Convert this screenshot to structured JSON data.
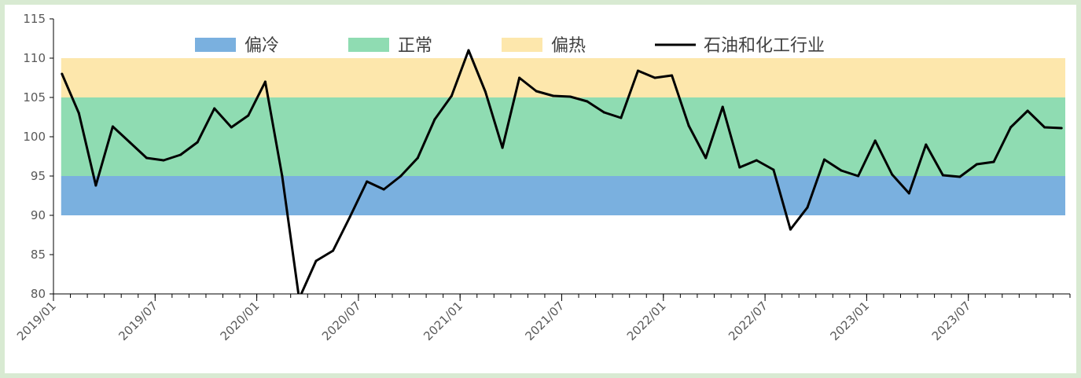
{
  "chart_data": {
    "type": "line",
    "title": "",
    "xlabel": "",
    "ylabel": "",
    "ylim": [
      80,
      115
    ],
    "yticks": [
      80,
      85,
      90,
      95,
      100,
      105,
      110,
      115
    ],
    "grid": false,
    "legend_position": "top",
    "bands": [
      {
        "name": "偏冷",
        "from": 90,
        "to": 95,
        "color": "#7ab0df"
      },
      {
        "name": "正常",
        "from": 95,
        "to": 105,
        "color": "#8fdcb2"
      },
      {
        "name": "偏热",
        "from": 105,
        "to": 110,
        "color": "#fde7ac"
      }
    ],
    "xtick_labels": [
      "2019/01",
      "2019/07",
      "2020/01",
      "2020/07",
      "2021/01",
      "2021/07",
      "2022/01",
      "2022/07",
      "2023/01",
      "2023/07"
    ],
    "x": [
      "2019/01",
      "2019/02",
      "2019/03",
      "2019/04",
      "2019/05",
      "2019/06",
      "2019/07",
      "2019/08",
      "2019/09",
      "2019/10",
      "2019/11",
      "2019/12",
      "2020/01",
      "2020/02",
      "2020/03",
      "2020/04",
      "2020/05",
      "2020/06",
      "2020/07",
      "2020/08",
      "2020/09",
      "2020/10",
      "2020/11",
      "2020/12",
      "2021/01",
      "2021/02",
      "2021/03",
      "2021/04",
      "2021/05",
      "2021/06",
      "2021/07",
      "2021/08",
      "2021/09",
      "2021/10",
      "2021/11",
      "2021/12",
      "2022/01",
      "2022/02",
      "2022/03",
      "2022/04",
      "2022/05",
      "2022/06",
      "2022/07",
      "2022/08",
      "2022/09",
      "2022/10",
      "2022/11",
      "2022/12",
      "2023/01",
      "2023/02",
      "2023/03",
      "2023/04",
      "2023/05",
      "2023/06",
      "2023/07",
      "2023/08",
      "2023/09",
      "2023/10",
      "2023/11",
      "2023/12"
    ],
    "series": [
      {
        "name": "石油和化工行业",
        "color": "#000000",
        "values": [
          108.0,
          103.0,
          93.8,
          101.3,
          99.3,
          97.3,
          97.0,
          97.7,
          99.3,
          103.6,
          101.2,
          102.7,
          107.0,
          95.0,
          79.4,
          84.2,
          85.5,
          89.8,
          94.3,
          93.3,
          95.0,
          97.3,
          102.2,
          105.2,
          111.0,
          105.7,
          98.6,
          107.5,
          105.8,
          105.2,
          105.1,
          104.5,
          103.1,
          102.4,
          108.4,
          107.5,
          107.8,
          101.4,
          97.3,
          103.8,
          96.1,
          97.0,
          95.8,
          88.2,
          91.0,
          97.1,
          95.7,
          95.0,
          99.5,
          95.2,
          92.8,
          99.0,
          95.1,
          94.9,
          96.5,
          96.8,
          101.2,
          103.3,
          101.2,
          101.1
        ]
      }
    ]
  }
}
